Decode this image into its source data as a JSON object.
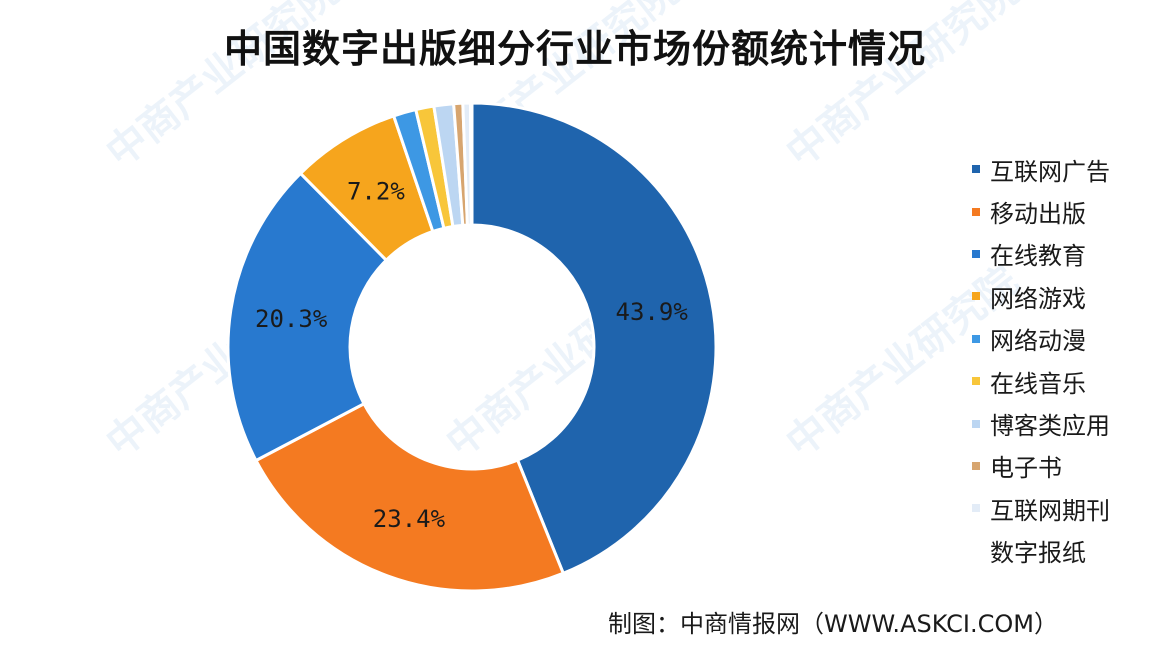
{
  "watermark_text": "中商产业研究院",
  "source_note": "制图：中商情报网（WWW.ASKCI.COM）",
  "chart_data": {
    "type": "pie",
    "title": "中国数字出版细分行业市场份额统计情况",
    "series": [
      {
        "name": "互联网广告",
        "value": 43.9,
        "label": "43.9%",
        "color": "#1f64ad"
      },
      {
        "name": "移动出版",
        "value": 23.4,
        "label": "23.4%",
        "color": "#f47a21"
      },
      {
        "name": "在线教育",
        "value": 20.3,
        "label": "20.3%",
        "color": "#2879cf"
      },
      {
        "name": "网络游戏",
        "value": 7.2,
        "label": "7.2%",
        "color": "#f6a51d"
      },
      {
        "name": "网络动漫",
        "value": 1.5,
        "label": "",
        "color": "#3d98e4"
      },
      {
        "name": "在线音乐",
        "value": 1.2,
        "label": "",
        "color": "#f8c63a"
      },
      {
        "name": "博客类应用",
        "value": 1.3,
        "label": "",
        "color": "#bcd6f2"
      },
      {
        "name": "电子书",
        "value": 0.6,
        "label": "",
        "color": "#d7a56f"
      },
      {
        "name": "互联网期刊",
        "value": 0.5,
        "label": "",
        "color": "#e3ecf7"
      },
      {
        "name": "数字报纸",
        "value": 0.1,
        "label": "",
        "color": "#eef3f9"
      }
    ],
    "legend_position": "right",
    "hole": "donut"
  }
}
